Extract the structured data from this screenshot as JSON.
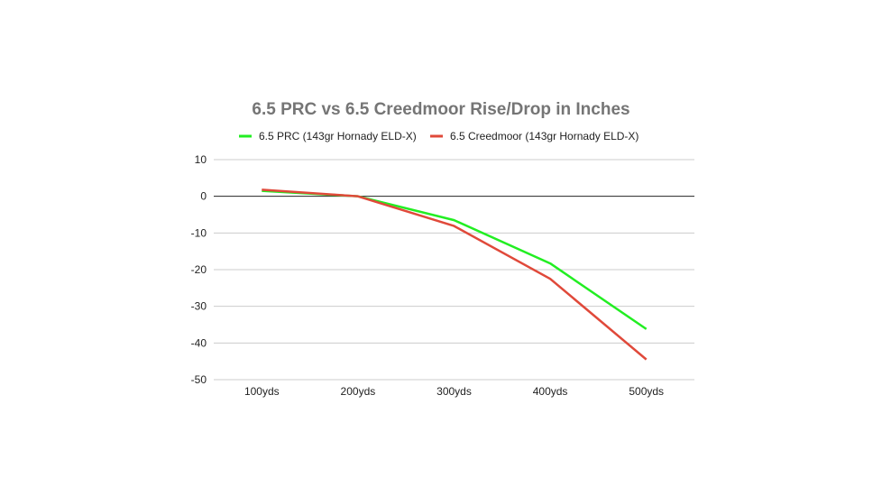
{
  "chart_data": {
    "type": "line",
    "title": "6.5 PRC vs 6.5 Creedmoor Rise/Drop in Inches",
    "xlabel": "",
    "ylabel": "",
    "categories": [
      "100yds",
      "200yds",
      "300yds",
      "400yds",
      "500yds"
    ],
    "series": [
      {
        "name": "6.5 PRC (143gr Hornady ELD-X)",
        "color": "#22ee22",
        "values": [
          1.5,
          0,
          -6.5,
          -18.3,
          -36.2
        ]
      },
      {
        "name": "6.5 Creedmoor (143gr Hornady ELD-X)",
        "color": "#e0493a",
        "values": [
          1.8,
          0,
          -8.1,
          -22.5,
          -44.5
        ]
      }
    ],
    "ylim": [
      -50,
      10
    ],
    "yticks": [
      10,
      0,
      -10,
      -20,
      -30,
      -40,
      -50
    ],
    "legend_position": "top",
    "grid": true
  }
}
